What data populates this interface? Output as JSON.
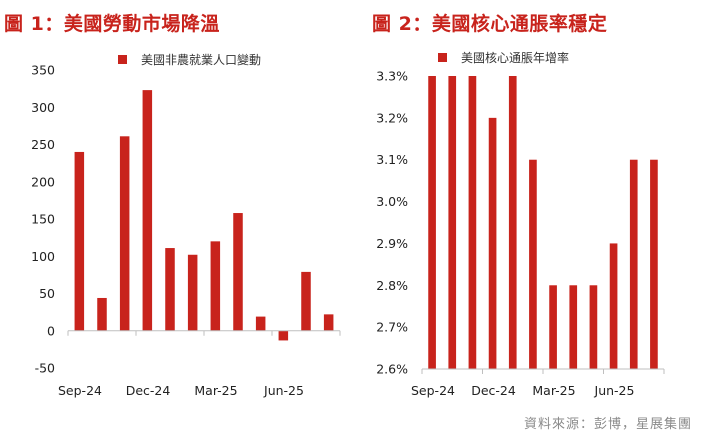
{
  "titles": {
    "left": "圖 1：美國勞動市場降溫",
    "right": "圖 2：美國核心通脹率穩定"
  },
  "source": "資料來源：彭博，星展集團",
  "colors": {
    "bar": "#c8231c",
    "title": "#c8231c",
    "axis": "#bfbfbf"
  },
  "chart_data": [
    {
      "type": "bar",
      "title": "圖 1：美國勞動市場降溫",
      "series": [
        {
          "name": "美國非農就業人口變動",
          "values": [
            240,
            44,
            261,
            323,
            111,
            102,
            120,
            158,
            19,
            -13,
            79,
            22
          ]
        }
      ],
      "ylim": [
        -50,
        350
      ],
      "yticks": [
        -50,
        0,
        50,
        100,
        150,
        200,
        250,
        300,
        350
      ],
      "ytick_labels": [
        "-50",
        "0",
        "50",
        "100",
        "150",
        "200",
        "250",
        "300",
        "350"
      ],
      "xtick_labels": [
        "Sep-24",
        "Dec-24",
        "Mar-25",
        "Jun-25"
      ],
      "xtick_index": [
        0,
        3,
        6,
        9
      ],
      "legend_position": "top",
      "grid": false
    },
    {
      "type": "bar",
      "title": "圖 2：美國核心通脹率穩定",
      "series": [
        {
          "name": "美國核心通脹年增率",
          "values": [
            3.3,
            3.3,
            3.3,
            3.2,
            3.3,
            3.1,
            2.8,
            2.8,
            2.8,
            2.9,
            3.1,
            3.1
          ]
        }
      ],
      "ylim": [
        2.6,
        3.3
      ],
      "yticks": [
        2.6,
        2.7,
        2.8,
        2.9,
        3.0,
        3.1,
        3.2,
        3.3
      ],
      "ytick_labels": [
        "2.6%",
        "2.7%",
        "2.8%",
        "2.9%",
        "3.0%",
        "3.1%",
        "3.2%",
        "3.3%"
      ],
      "xtick_labels": [
        "Sep-24",
        "Dec-24",
        "Mar-25",
        "Jun-25"
      ],
      "xtick_index": [
        0,
        3,
        6,
        9
      ],
      "legend_position": "top",
      "grid": false
    }
  ]
}
